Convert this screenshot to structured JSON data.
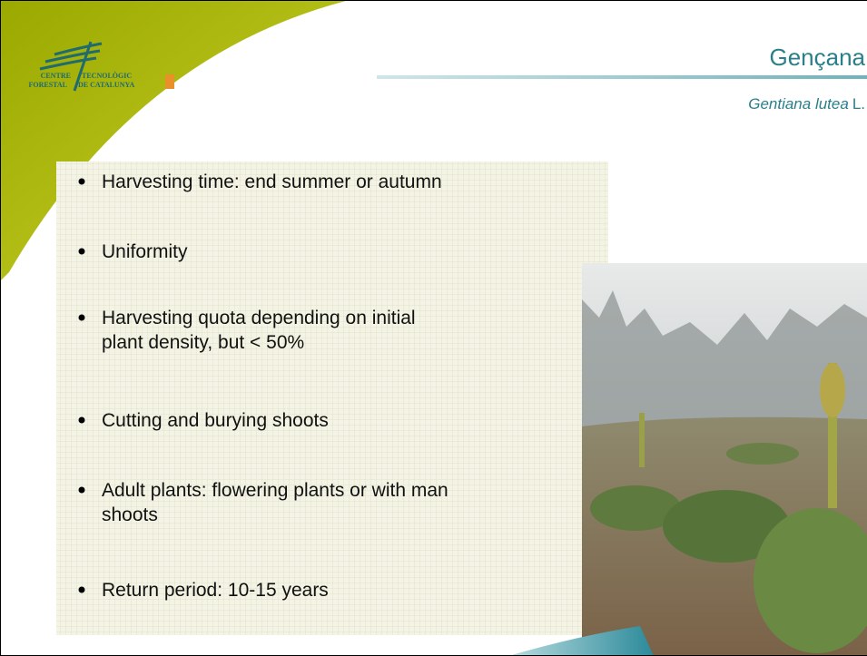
{
  "header": {
    "title": "Gençana",
    "species": "Gentiana lutea",
    "author": "L."
  },
  "logo": {
    "line1_left": "CENTRE",
    "line1_right": "TECNOLÒGIC",
    "line2_left": "FORESTAL",
    "line2_right": "DE CATALUNYA"
  },
  "bullets": [
    [
      "Harvesting time: end summer or autumn"
    ],
    [
      "Uniformity"
    ],
    [
      "Harvesting quota depending on initial",
      "plant density, but < 50%"
    ],
    [
      "Cutting and burying shoots"
    ],
    [
      "Adult plants: flowering plants or with man",
      "shoots"
    ],
    [
      "Return period: 10-15 years"
    ]
  ]
}
